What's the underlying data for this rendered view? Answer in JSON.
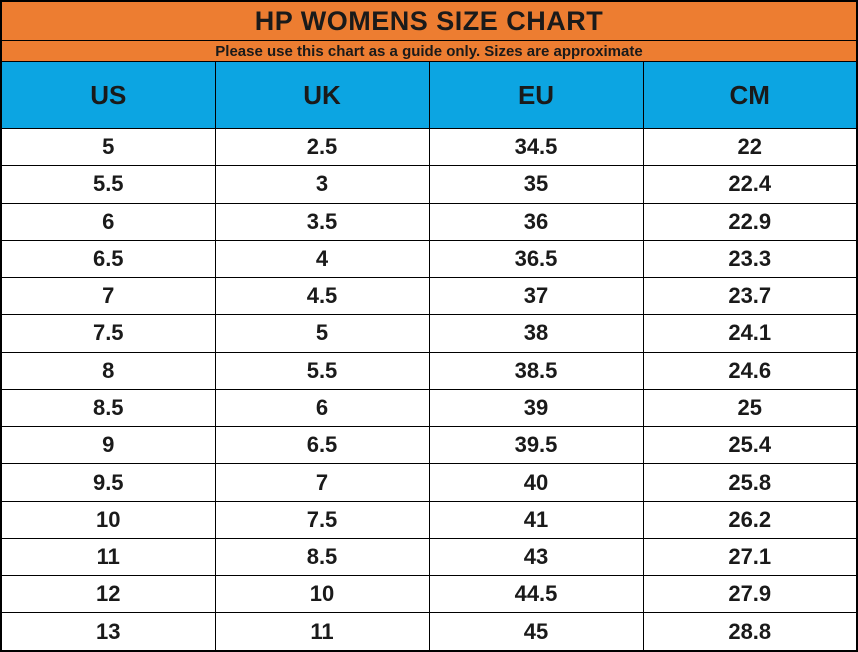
{
  "colors": {
    "header_orange": "#ED7D31",
    "header_blue": "#0CA5E2",
    "border_black": "#000000",
    "text_black": "#1a1a1a"
  },
  "chart_data": {
    "type": "table",
    "title": "HP WOMENS SIZE CHART",
    "subtitle": "Please use this chart as a guide only. Sizes are approximate",
    "columns": [
      "US",
      "UK",
      "EU",
      "CM"
    ],
    "rows": [
      [
        "5",
        "2.5",
        "34.5",
        "22"
      ],
      [
        "5.5",
        "3",
        "35",
        "22.4"
      ],
      [
        "6",
        "3.5",
        "36",
        "22.9"
      ],
      [
        "6.5",
        "4",
        "36.5",
        "23.3"
      ],
      [
        "7",
        "4.5",
        "37",
        "23.7"
      ],
      [
        "7.5",
        "5",
        "38",
        "24.1"
      ],
      [
        "8",
        "5.5",
        "38.5",
        "24.6"
      ],
      [
        "8.5",
        "6",
        "39",
        "25"
      ],
      [
        "9",
        "6.5",
        "39.5",
        "25.4"
      ],
      [
        "9.5",
        "7",
        "40",
        "25.8"
      ],
      [
        "10",
        "7.5",
        "41",
        "26.2"
      ],
      [
        "11",
        "8.5",
        "43",
        "27.1"
      ],
      [
        "12",
        "10",
        "44.5",
        "27.9"
      ],
      [
        "13",
        "11",
        "45",
        "28.8"
      ]
    ]
  }
}
